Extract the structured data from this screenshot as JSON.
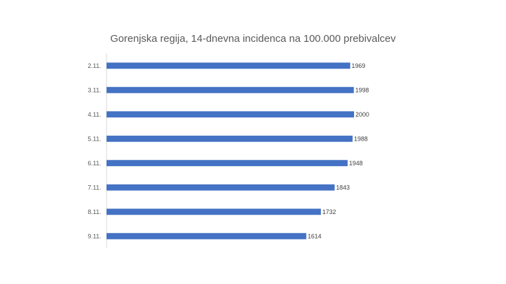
{
  "chart_data": {
    "type": "bar",
    "orientation": "horizontal",
    "title": "Gorenjska regija, 14-dnevna incidenca na 100.000 prebivalcev",
    "xlabel": "",
    "ylabel": "",
    "categories": [
      "2.11.",
      "3.11.",
      "4.11.",
      "5.11.",
      "6.11.",
      "7.11.",
      "8.11.",
      "9.11."
    ],
    "values": [
      1969,
      1998,
      2000,
      1988,
      1948,
      1843,
      1732,
      1614
    ],
    "xlim": [
      0,
      2000
    ],
    "grid": false,
    "legend": "none",
    "bar_color": "#4472C4",
    "axis_color": "#d9d9d9"
  }
}
